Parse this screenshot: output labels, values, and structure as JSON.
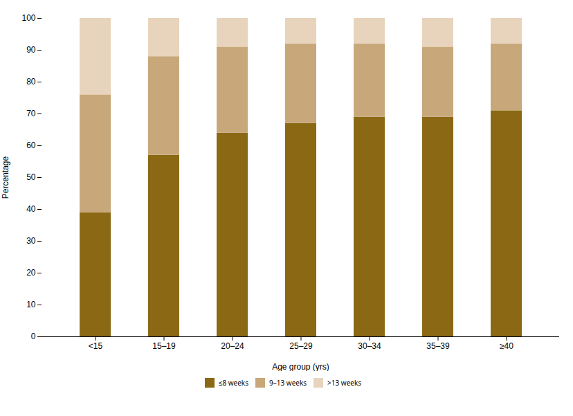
{
  "chart_data": {
    "type": "bar",
    "stacked": true,
    "categories": [
      "<15",
      "15–19",
      "20–24",
      "25–29",
      "30–34",
      "35–39",
      "≥40"
    ],
    "series": [
      {
        "name": "≤8 weeks",
        "color": "#8B6914",
        "values": [
          39,
          57,
          64,
          67,
          69,
          69,
          71
        ]
      },
      {
        "name": "9–13 weeks",
        "color": "#C8A87A",
        "values": [
          37,
          31,
          27,
          25,
          23,
          22,
          21
        ]
      },
      {
        "name": ">13 weeks",
        "color": "#E8D4BC",
        "values": [
          24,
          12,
          9,
          8,
          8,
          9,
          8
        ]
      }
    ],
    "xlabel": "Age group (yrs)",
    "ylabel": "Percentage",
    "ylim": [
      0,
      100
    ],
    "yticks": [
      0,
      10,
      20,
      30,
      40,
      50,
      60,
      70,
      80,
      90,
      100
    ],
    "grid": false,
    "legend": "bottom"
  }
}
